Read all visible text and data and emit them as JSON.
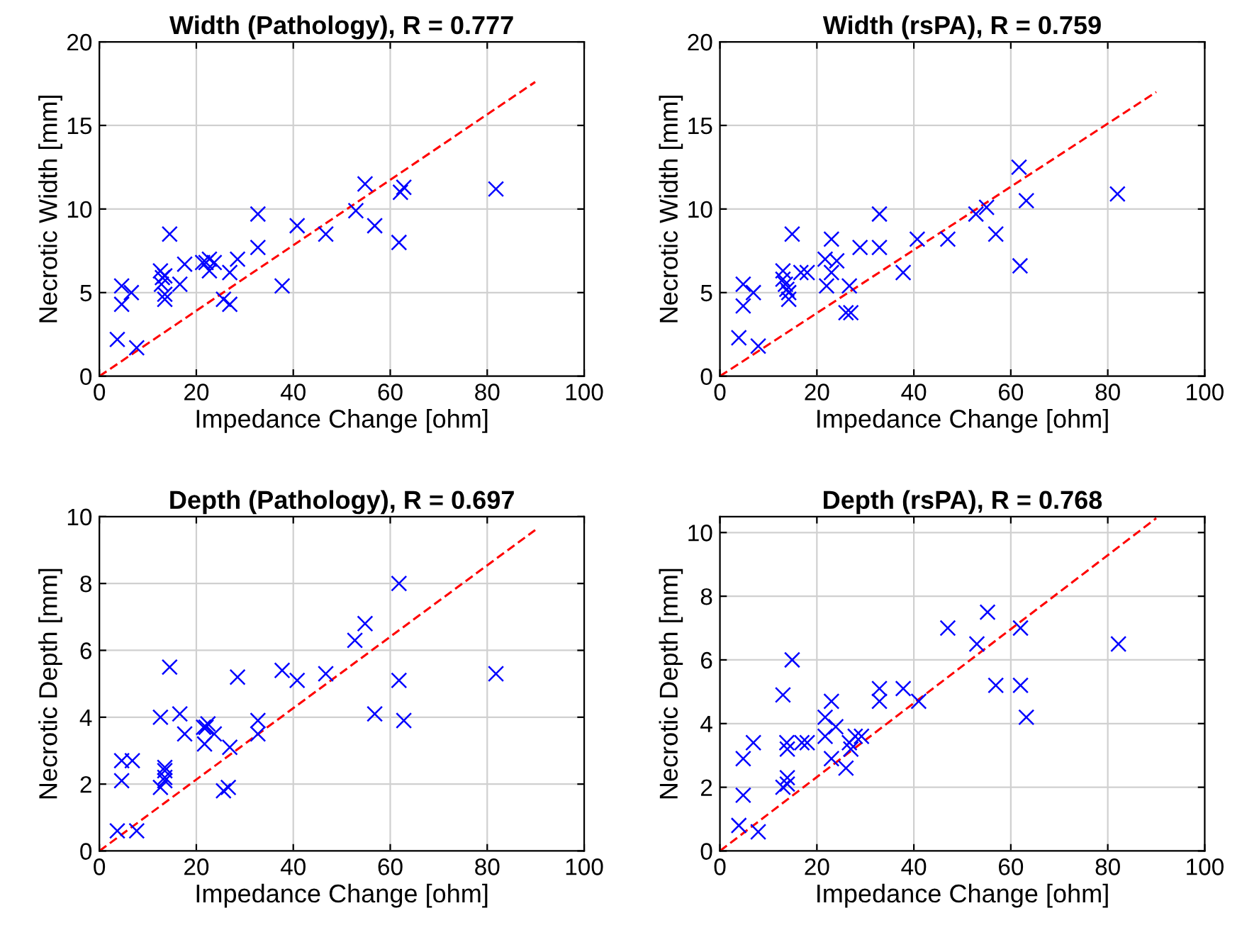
{
  "chart_data": [
    {
      "type": "scatter",
      "title": "Width (Pathology), R = 0.777",
      "xlabel": "Impedance Change [ohm]",
      "ylabel": "Necrotic Width [mm]",
      "xlim": [
        0,
        100
      ],
      "xticks": [
        0,
        20,
        40,
        60,
        80,
        100
      ],
      "ylim": [
        0,
        20
      ],
      "yticks": [
        0,
        5,
        10,
        15,
        20
      ],
      "grid": true,
      "series": [
        {
          "marker": "cross",
          "color": "#0000ff",
          "x": [
            3.7,
            7.7,
            4.6,
            6.6,
            4.6,
            14.5,
            12.6,
            13.0,
            13.5,
            12.8,
            13.5,
            13.5,
            16.6,
            17.6,
            21.3,
            22,
            22.7,
            23.7,
            22.7,
            26.9,
            28.5,
            25.6,
            26.9,
            32.7,
            32.7,
            37.7,
            40.8,
            46.7,
            52.9,
            54.8,
            56.8,
            61.8,
            62.1,
            62.8,
            81.8
          ],
          "values": [
            2.2,
            1.7,
            5.4,
            5.0,
            4.3,
            8.5,
            6.3,
            5.9,
            6.0,
            5.5,
            4.9,
            4.6,
            5.5,
            6.7,
            6.8,
            6.8,
            7.0,
            6.8,
            6.3,
            6.2,
            7.0,
            4.6,
            4.3,
            9.7,
            7.7,
            5.4,
            9.0,
            8.5,
            9.9,
            11.5,
            9.0,
            8.0,
            11.0,
            11.3,
            11.2
          ]
        },
        {
          "type": "line",
          "line_style": "dashed",
          "color": "#ff0000",
          "x": [
            0,
            89.9
          ],
          "values": [
            0,
            17.6
          ]
        }
      ]
    },
    {
      "type": "scatter",
      "title": "Width (rsPA), R = 0.759",
      "xlabel": "Impedance Change [ohm]",
      "ylabel": "Necrotic Width [mm]",
      "xlim": [
        0,
        100
      ],
      "xticks": [
        0,
        20,
        40,
        60,
        80,
        100
      ],
      "ylim": [
        0,
        20
      ],
      "yticks": [
        0,
        5,
        10,
        15,
        20
      ],
      "grid": true,
      "series": [
        {
          "marker": "cross",
          "color": "#0000ff",
          "x": [
            3.9,
            7.9,
            4.8,
            6.9,
            4.8,
            14.9,
            13.0,
            13.0,
            13.5,
            13.8,
            14.2,
            14.2,
            16.7,
            18.0,
            21.7,
            23.0,
            23.0,
            22.0,
            24.1,
            26.7,
            26.0,
            27.0,
            28.9,
            32.9,
            32.9,
            37.8,
            40.7,
            47.0,
            52.8,
            55.0,
            56.9,
            61.7,
            61.9,
            63.2,
            82.0
          ],
          "values": [
            2.3,
            1.8,
            5.5,
            5.0,
            4.2,
            8.5,
            6.3,
            5.8,
            5.5,
            5.2,
            5.0,
            4.6,
            6.2,
            6.2,
            7.0,
            8.2,
            6.2,
            5.4,
            6.9,
            5.4,
            3.8,
            3.8,
            7.7,
            9.7,
            7.7,
            6.2,
            8.2,
            8.2,
            9.7,
            10.1,
            8.5,
            12.5,
            6.6,
            10.5,
            10.9
          ]
        },
        {
          "type": "line",
          "line_style": "dashed",
          "color": "#ff0000",
          "x": [
            0,
            90.0
          ],
          "values": [
            0,
            17.0
          ]
        }
      ]
    },
    {
      "type": "scatter",
      "title": "Depth (Pathology), R = 0.697",
      "xlabel": "Impedance Change [ohm]",
      "ylabel": "Necrotic Depth [mm]",
      "xlim": [
        0,
        100
      ],
      "xticks": [
        0,
        20,
        40,
        60,
        80,
        100
      ],
      "ylim": [
        0,
        10
      ],
      "yticks": [
        0,
        2,
        4,
        6,
        8,
        10
      ],
      "grid": true,
      "series": [
        {
          "marker": "cross",
          "color": "#0000ff",
          "x": [
            3.7,
            7.7,
            4.6,
            4.6,
            6.8,
            14.5,
            12.6,
            13.5,
            13.5,
            13.5,
            13.5,
            12.6,
            16.6,
            17.6,
            21.5,
            22.4,
            22,
            23.7,
            21.7,
            26.9,
            25.6,
            26.6,
            28.5,
            32.7,
            32.7,
            37.7,
            40.8,
            46.7,
            52.7,
            54.8,
            56.8,
            61.8,
            61.8,
            62.8,
            81.8
          ],
          "values": [
            0.6,
            0.6,
            2.1,
            2.7,
            2.7,
            5.5,
            4.0,
            2.5,
            2.4,
            2.2,
            2.1,
            1.9,
            4.1,
            3.5,
            3.7,
            3.8,
            3.7,
            3.5,
            3.2,
            3.1,
            1.8,
            1.9,
            5.2,
            3.9,
            3.5,
            5.4,
            5.1,
            5.3,
            6.3,
            6.8,
            4.1,
            8.0,
            5.1,
            3.9,
            5.3
          ]
        },
        {
          "type": "line",
          "line_style": "dashed",
          "color": "#ff0000",
          "x": [
            0,
            89.9
          ],
          "values": [
            0,
            9.6
          ]
        }
      ]
    },
    {
      "type": "scatter",
      "title": "Depth (rsPA), R = 0.768",
      "xlabel": "Impedance Change [ohm]",
      "ylabel": "Necrotic Depth [mm]",
      "xlim": [
        0,
        100
      ],
      "xticks": [
        0,
        20,
        40,
        60,
        80,
        100
      ],
      "ylim": [
        0,
        10.5
      ],
      "yticks": [
        0,
        2,
        4,
        6,
        8,
        10
      ],
      "grid": true,
      "series": [
        {
          "marker": "cross",
          "color": "#0000ff",
          "x": [
            3.9,
            7.9,
            4.8,
            4.8,
            6.9,
            14.9,
            13.0,
            13.0,
            13.9,
            13.9,
            13.8,
            13.9,
            16.9,
            18.0,
            21.7,
            23.0,
            21.7,
            23.9,
            23.0,
            26.0,
            26.7,
            27.0,
            27.9,
            29.2,
            32.9,
            32.9,
            37.8,
            41.0,
            47.0,
            53.0,
            55.2,
            56.9,
            62.0,
            62.0,
            63.2,
            82.2
          ],
          "values": [
            0.8,
            0.6,
            1.75,
            2.9,
            3.4,
            6.0,
            4.9,
            2.0,
            2.1,
            2.3,
            3.4,
            3.2,
            3.4,
            3.4,
            4.2,
            4.7,
            3.6,
            3.9,
            2.9,
            2.6,
            3.4,
            3.2,
            3.6,
            3.6,
            5.1,
            4.7,
            5.1,
            4.7,
            7.0,
            6.5,
            7.5,
            5.2,
            7.0,
            5.2,
            4.2,
            6.5
          ]
        },
        {
          "type": "line",
          "line_style": "dashed",
          "color": "#ff0000",
          "x": [
            0,
            90.0
          ],
          "values": [
            0,
            10.45
          ]
        }
      ]
    }
  ]
}
